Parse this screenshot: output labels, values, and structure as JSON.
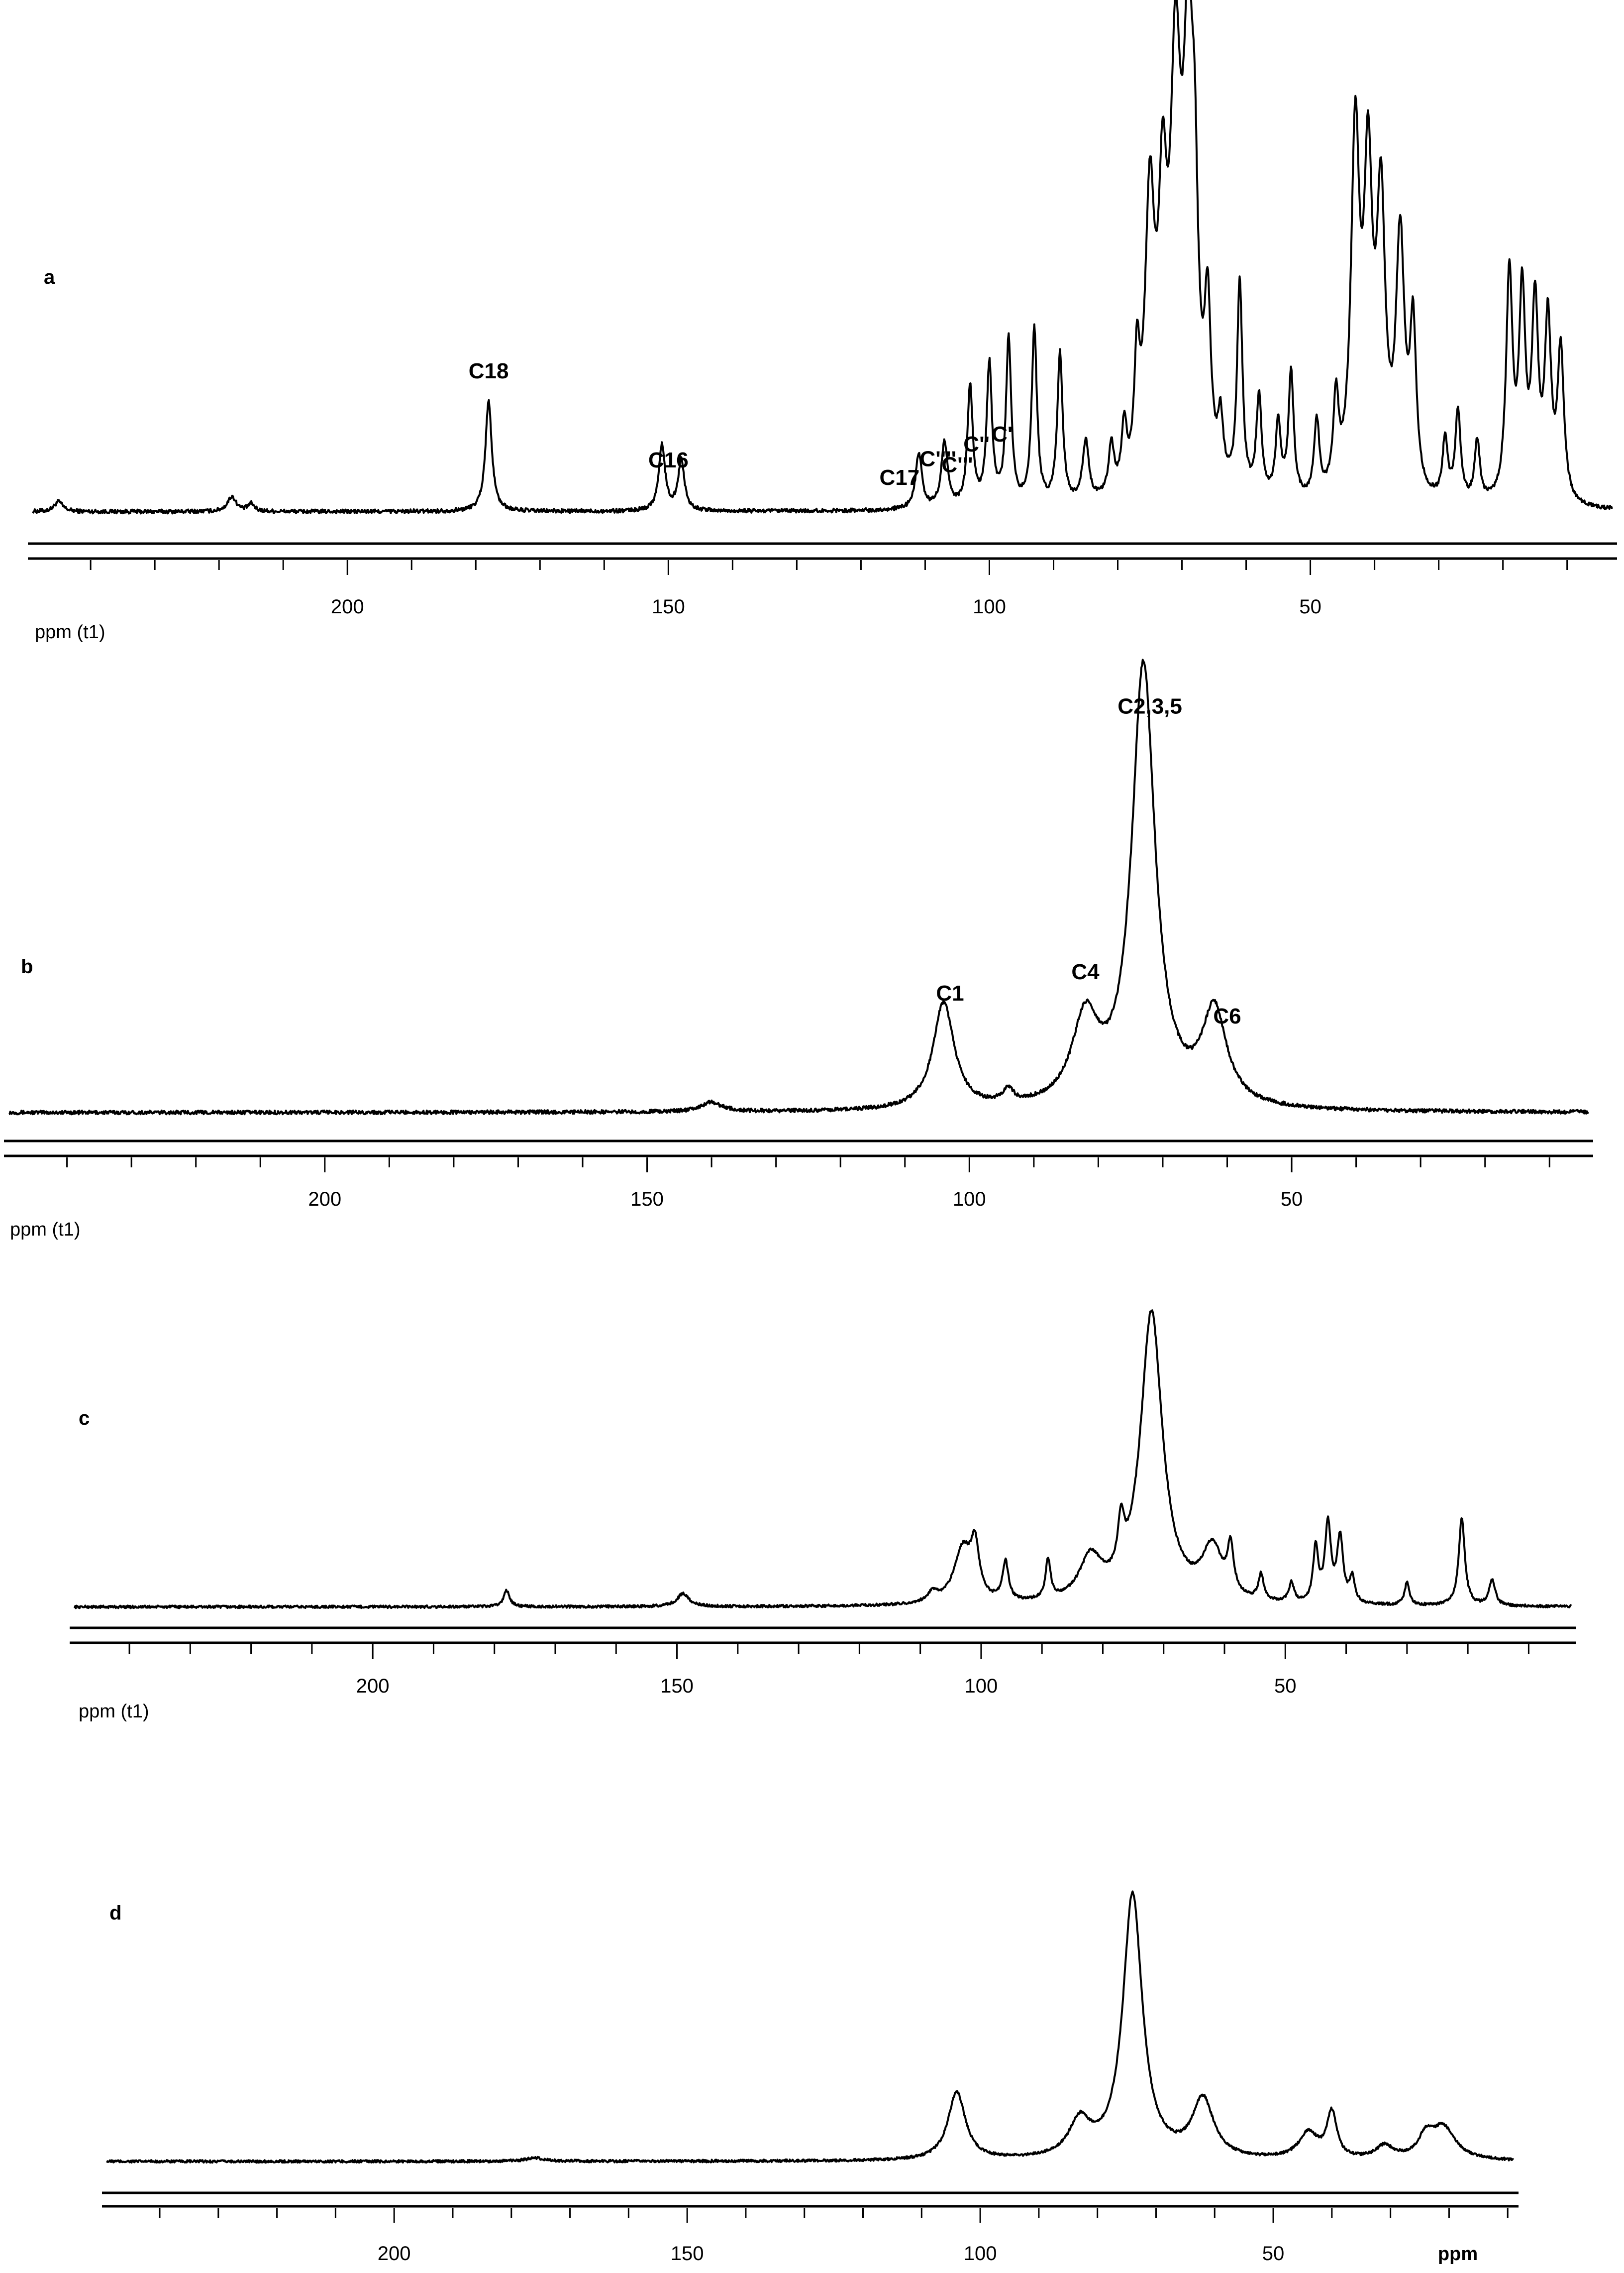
{
  "chart_data": [
    {
      "type": "line",
      "panel": "a",
      "xlabel": "ppm (t1)",
      "xlim": [
        249,
        3
      ],
      "x_ticks": [
        200,
        150,
        100,
        50
      ],
      "baseline": 0,
      "series": [
        {
          "peaks": [
            {
              "ppm": 245,
              "h": 0.02,
              "w": 0.8
            },
            {
              "ppm": 218,
              "h": 0.03,
              "w": 0.8
            },
            {
              "ppm": 215,
              "h": 0.015,
              "w": 0.6
            },
            {
              "ppm": 178,
              "h": 0.22,
              "w": 0.6
            },
            {
              "ppm": 151,
              "h": 0.13,
              "w": 0.6
            },
            {
              "ppm": 148,
              "h": 0.1,
              "w": 0.6
            },
            {
              "ppm": 111,
              "h": 0.11,
              "w": 0.6
            },
            {
              "ppm": 107,
              "h": 0.13,
              "w": 0.6
            },
            {
              "ppm": 103,
              "h": 0.24,
              "w": 0.5
            },
            {
              "ppm": 100,
              "h": 0.28,
              "w": 0.5
            },
            {
              "ppm": 97,
              "h": 0.33,
              "w": 0.5
            },
            {
              "ppm": 93,
              "h": 0.35,
              "w": 0.5
            },
            {
              "ppm": 89,
              "h": 0.3,
              "w": 0.5
            },
            {
              "ppm": 85,
              "h": 0.12,
              "w": 0.6
            },
            {
              "ppm": 81,
              "h": 0.1,
              "w": 0.5
            },
            {
              "ppm": 79,
              "h": 0.12,
              "w": 0.5
            },
            {
              "ppm": 77,
              "h": 0.22,
              "w": 0.5
            },
            {
              "ppm": 75,
              "h": 0.55,
              "w": 0.9
            },
            {
              "ppm": 73,
              "h": 0.48,
              "w": 0.8
            },
            {
              "ppm": 71,
              "h": 0.75,
              "w": 1.0
            },
            {
              "ppm": 69,
              "h": 0.8,
              "w": 1.0
            },
            {
              "ppm": 68,
              "h": 0.35,
              "w": 0.6
            },
            {
              "ppm": 66,
              "h": 0.32,
              "w": 0.6
            },
            {
              "ppm": 64,
              "h": 0.12,
              "w": 0.5
            },
            {
              "ppm": 61,
              "h": 0.42,
              "w": 0.5
            },
            {
              "ppm": 58,
              "h": 0.2,
              "w": 0.5
            },
            {
              "ppm": 55,
              "h": 0.15,
              "w": 0.5
            },
            {
              "ppm": 53,
              "h": 0.25,
              "w": 0.5
            },
            {
              "ppm": 49,
              "h": 0.15,
              "w": 0.5
            },
            {
              "ppm": 46,
              "h": 0.18,
              "w": 0.5
            },
            {
              "ppm": 43,
              "h": 0.7,
              "w": 0.8
            },
            {
              "ppm": 41,
              "h": 0.6,
              "w": 0.8
            },
            {
              "ppm": 39,
              "h": 0.55,
              "w": 0.8
            },
            {
              "ppm": 36,
              "h": 0.5,
              "w": 0.8
            },
            {
              "ppm": 34,
              "h": 0.32,
              "w": 0.6
            },
            {
              "ppm": 29,
              "h": 0.12,
              "w": 0.5
            },
            {
              "ppm": 27,
              "h": 0.18,
              "w": 0.5
            },
            {
              "ppm": 24,
              "h": 0.12,
              "w": 0.5
            },
            {
              "ppm": 19,
              "h": 0.45,
              "w": 0.6
            },
            {
              "ppm": 17,
              "h": 0.4,
              "w": 0.6
            },
            {
              "ppm": 15,
              "h": 0.38,
              "w": 0.6
            },
            {
              "ppm": 13,
              "h": 0.35,
              "w": 0.6
            },
            {
              "ppm": 11,
              "h": 0.3,
              "w": 0.6
            }
          ]
        }
      ],
      "annotations": [
        {
          "text": "C18",
          "ppm": 178
        },
        {
          "text": "C16",
          "ppm": 150
        },
        {
          "text": "C17",
          "ppm": 114
        },
        {
          "text": "C''''",
          "ppm": 108
        },
        {
          "text": "C'''",
          "ppm": 105
        },
        {
          "text": "C''",
          "ppm": 102
        },
        {
          "text": "C'",
          "ppm": 98
        }
      ],
      "panel_label": "a"
    },
    {
      "type": "line",
      "panel": "b",
      "xlabel": "ppm (t1)",
      "xlim": [
        249,
        4
      ],
      "x_ticks": [
        200,
        150,
        100,
        50
      ],
      "series": [
        {
          "peaks": [
            {
              "ppm": 140,
              "h": 0.02,
              "w": 2.0
            },
            {
              "ppm": 104,
              "h": 0.23,
              "w": 2.0
            },
            {
              "ppm": 94,
              "h": 0.03,
              "w": 1.0
            },
            {
              "ppm": 82,
              "h": 0.18,
              "w": 2.5
            },
            {
              "ppm": 73,
              "h": 0.95,
              "w": 2.2
            },
            {
              "ppm": 62,
              "h": 0.2,
              "w": 2.3
            }
          ]
        }
      ],
      "annotations": [
        {
          "text": "C1",
          "ppm": 103
        },
        {
          "text": "C4",
          "ppm": 82
        },
        {
          "text": "C2,3,5",
          "ppm": 72
        },
        {
          "text": "C6",
          "ppm": 60
        }
      ],
      "panel_label": "b"
    },
    {
      "type": "line",
      "panel": "c",
      "xlabel": "ppm (t1)",
      "xlim": [
        249,
        3
      ],
      "x_ticks": [
        200,
        150,
        100,
        50
      ],
      "series": [
        {
          "peaks": [
            {
              "ppm": 178,
              "h": 0.05,
              "w": 0.6
            },
            {
              "ppm": 149,
              "h": 0.04,
              "w": 1.2
            },
            {
              "ppm": 108,
              "h": 0.03,
              "w": 1.0
            },
            {
              "ppm": 103,
              "h": 0.17,
              "w": 1.8
            },
            {
              "ppm": 101,
              "h": 0.15,
              "w": 0.8
            },
            {
              "ppm": 96,
              "h": 0.12,
              "w": 0.6
            },
            {
              "ppm": 89,
              "h": 0.12,
              "w": 0.5
            },
            {
              "ppm": 82,
              "h": 0.13,
              "w": 2.2
            },
            {
              "ppm": 77,
              "h": 0.15,
              "w": 0.6
            },
            {
              "ppm": 72,
              "h": 0.9,
              "w": 2.2
            },
            {
              "ppm": 62,
              "h": 0.16,
              "w": 2.0
            },
            {
              "ppm": 59,
              "h": 0.14,
              "w": 0.6
            },
            {
              "ppm": 54,
              "h": 0.08,
              "w": 0.5
            },
            {
              "ppm": 49,
              "h": 0.06,
              "w": 0.5
            },
            {
              "ppm": 45,
              "h": 0.17,
              "w": 0.5
            },
            {
              "ppm": 43,
              "h": 0.24,
              "w": 0.6
            },
            {
              "ppm": 41,
              "h": 0.2,
              "w": 0.6
            },
            {
              "ppm": 39,
              "h": 0.08,
              "w": 0.5
            },
            {
              "ppm": 30,
              "h": 0.07,
              "w": 0.5
            },
            {
              "ppm": 21,
              "h": 0.27,
              "w": 0.6
            },
            {
              "ppm": 16,
              "h": 0.08,
              "w": 0.6
            }
          ]
        }
      ],
      "annotations": [],
      "panel_label": "c"
    },
    {
      "type": "line",
      "panel": "d",
      "xlabel": "ppm",
      "xlim": [
        249,
        9
      ],
      "x_ticks": [
        200,
        150,
        100,
        50
      ],
      "series": [
        {
          "peaks": [
            {
              "ppm": 176,
              "h": 0.01,
              "w": 2.0
            },
            {
              "ppm": 104,
              "h": 0.21,
              "w": 1.8
            },
            {
              "ppm": 83,
              "h": 0.11,
              "w": 2.2
            },
            {
              "ppm": 74,
              "h": 0.82,
              "w": 2.0
            },
            {
              "ppm": 62,
              "h": 0.18,
              "w": 2.2
            },
            {
              "ppm": 44,
              "h": 0.08,
              "w": 2.0
            },
            {
              "ppm": 40,
              "h": 0.14,
              "w": 1.0
            },
            {
              "ppm": 31,
              "h": 0.04,
              "w": 1.8
            },
            {
              "ppm": 24,
              "h": 0.06,
              "w": 1.5
            },
            {
              "ppm": 21,
              "h": 0.1,
              "w": 2.5
            }
          ]
        }
      ],
      "annotations": [],
      "panel_label": "d"
    }
  ]
}
